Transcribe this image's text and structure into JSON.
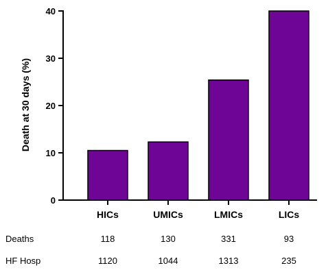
{
  "chart_data": {
    "type": "bar",
    "categories": [
      "HICs",
      "UMICs",
      "LMICs",
      "LICs"
    ],
    "values": [
      10.5,
      12.3,
      25.4,
      40.0
    ],
    "ylabel": "Death at 30 days (%)",
    "xlabel": "",
    "ylim": [
      0,
      40
    ],
    "yticks": [
      0,
      10,
      20,
      30,
      40
    ],
    "bar_color": "#6f0597",
    "grid": false,
    "legend": "none"
  },
  "table": {
    "rows": [
      {
        "label": "Deaths",
        "values": [
          "118",
          "130",
          "331",
          "93"
        ]
      },
      {
        "label": "HF Hosp",
        "values": [
          "1120",
          "1044",
          "1313",
          "235"
        ]
      }
    ]
  }
}
